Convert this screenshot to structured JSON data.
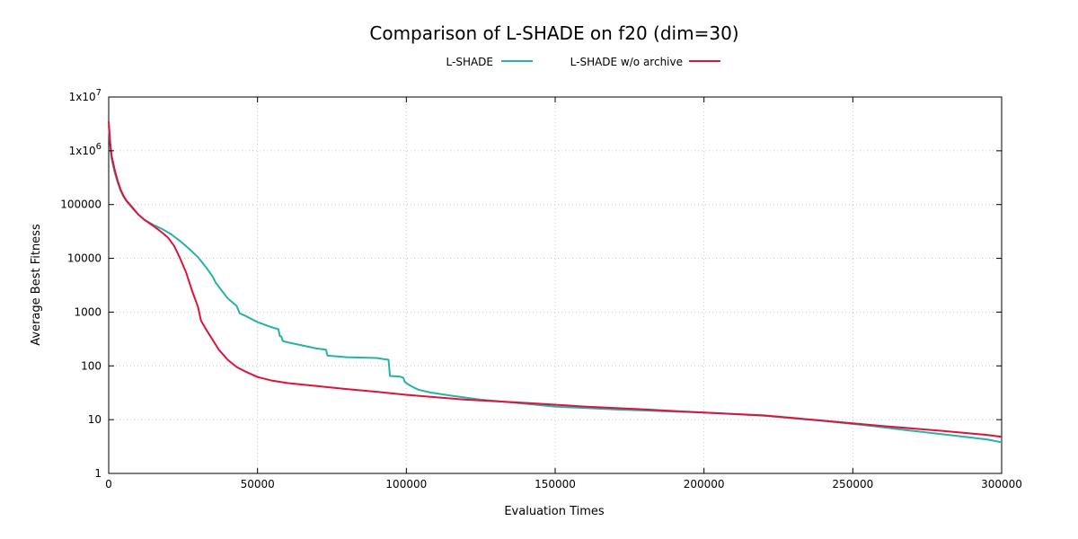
{
  "chart_data": {
    "type": "line",
    "title": "Comparison of L-SHADE on f20 (dim=30)",
    "xlabel": "Evaluation Times",
    "ylabel": "Average Best Fitness",
    "xlim": [
      0,
      300000
    ],
    "ylim": [
      1,
      10000000
    ],
    "yscale": "log",
    "grid": true,
    "legend_position": "top-center",
    "x_ticks": [
      0,
      50000,
      100000,
      150000,
      200000,
      250000,
      300000
    ],
    "x_tick_labels": [
      "0",
      "50000",
      "100000",
      "150000",
      "200000",
      "250000",
      "300000"
    ],
    "y_ticks": [
      1,
      10,
      100,
      1000,
      10000,
      100000,
      1000000,
      10000000
    ],
    "y_tick_labels": [
      {
        "base": "1",
        "sup": ""
      },
      {
        "base": "10",
        "sup": ""
      },
      {
        "base": "100",
        "sup": ""
      },
      {
        "base": "1000",
        "sup": ""
      },
      {
        "base": "10000",
        "sup": ""
      },
      {
        "base": "100000",
        "sup": ""
      },
      {
        "base": "1x10",
        "sup": "6"
      },
      {
        "base": "1x10",
        "sup": "7"
      }
    ],
    "series": [
      {
        "name": "L-SHADE",
        "color": "#26b2a4",
        "x": [
          0,
          500,
          1000,
          2000,
          3000,
          4000,
          5000,
          6000,
          8000,
          10000,
          12000,
          15000,
          18000,
          21000,
          24000,
          27000,
          30000,
          33000,
          35000,
          36000,
          38000,
          40000,
          43000,
          44000,
          46000,
          50000,
          54000,
          57000,
          57500,
          58000,
          58500,
          60000,
          65000,
          70000,
          73000,
          73500,
          80000,
          90000,
          94000,
          94500,
          98000,
          99000,
          99500,
          101000,
          102000,
          104000,
          108000,
          115000,
          125000,
          135000,
          150000,
          170000,
          200000,
          220000,
          240000,
          255000,
          270000,
          285000,
          295000,
          300000
        ],
        "y": [
          3000000,
          1200000,
          700000,
          400000,
          260000,
          180000,
          140000,
          115000,
          85000,
          65000,
          52000,
          42000,
          35000,
          28000,
          21000,
          15000,
          10500,
          6500,
          4500,
          3500,
          2500,
          1800,
          1300,
          950,
          850,
          650,
          540,
          480,
          360,
          350,
          290,
          275,
          240,
          210,
          200,
          155,
          145,
          140,
          130,
          65,
          63,
          60,
          50,
          44,
          41,
          36,
          32,
          28,
          23.5,
          21,
          17.5,
          15.5,
          13.5,
          11.8,
          9.5,
          7.8,
          6.2,
          5.0,
          4.3,
          3.8
        ]
      },
      {
        "name": "L-SHADE w/o archive",
        "color": "#dc143c",
        "x": [
          0,
          500,
          1000,
          2000,
          3000,
          4000,
          5000,
          6000,
          8000,
          10000,
          12000,
          15000,
          18000,
          20000,
          22000,
          24000,
          26000,
          28000,
          30000,
          31000,
          33000,
          35000,
          37000,
          40000,
          43000,
          46000,
          50000,
          55000,
          60000,
          70000,
          80000,
          90000,
          100000,
          110000,
          120000,
          140000,
          160000,
          180000,
          200000,
          220000,
          240000,
          260000,
          280000,
          295000,
          300000
        ],
        "y": [
          3500000,
          1400000,
          800000,
          450000,
          280000,
          190000,
          145000,
          118000,
          88000,
          65000,
          52000,
          40000,
          30000,
          24000,
          17000,
          10000,
          5500,
          2500,
          1250,
          700,
          450,
          300,
          200,
          130,
          95,
          78,
          62,
          53,
          48,
          42,
          37,
          33,
          29,
          26,
          23.5,
          20.5,
          17.5,
          15.5,
          13.5,
          12.0,
          9.6,
          7.6,
          6.2,
          5.2,
          4.8
        ]
      }
    ]
  }
}
